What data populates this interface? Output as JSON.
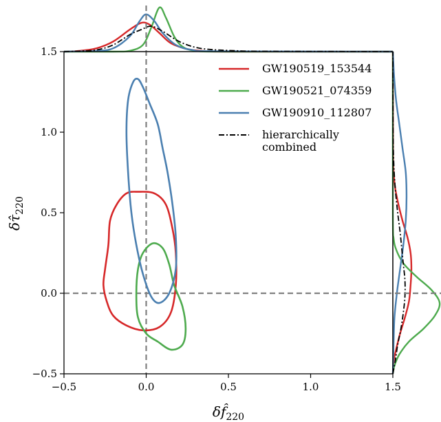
{
  "chart_data": {
    "type": "contour",
    "xlabel": "δf̂",
    "xlabel_sub": "220",
    "ylabel": "δτ̂",
    "ylabel_sub": "220",
    "xlim": [
      -0.5,
      1.5
    ],
    "ylim": [
      -0.5,
      1.5
    ],
    "x_ticks": [
      "−0.5",
      "0.0",
      "0.5",
      "1.0",
      "1.5"
    ],
    "y_ticks": [
      "−0.5",
      "0.0",
      "0.5",
      "1.0",
      "1.5"
    ],
    "x_tick_values": [
      -0.5,
      0.0,
      0.5,
      1.0,
      1.5
    ],
    "y_tick_values": [
      -0.5,
      0.0,
      0.5,
      1.0,
      1.5
    ],
    "reference_lines": {
      "x": 0.0,
      "y": 0.0,
      "color": "#808080",
      "style": "dashed"
    },
    "legend_position": "top-right",
    "series": [
      {
        "name": "GW190519_153544",
        "color": "#d62728",
        "style": "solid",
        "contour": [
          [
            -0.05,
            0.63
          ],
          [
            0.05,
            0.62
          ],
          [
            0.12,
            0.55
          ],
          [
            0.16,
            0.4
          ],
          [
            0.18,
            0.25
          ],
          [
            0.18,
            0.05
          ],
          [
            0.15,
            -0.12
          ],
          [
            0.08,
            -0.21
          ],
          [
            -0.02,
            -0.23
          ],
          [
            -0.12,
            -0.2
          ],
          [
            -0.2,
            -0.14
          ],
          [
            -0.24,
            -0.05
          ],
          [
            -0.26,
            0.05
          ],
          [
            -0.25,
            0.15
          ],
          [
            -0.23,
            0.3
          ],
          [
            -0.22,
            0.45
          ],
          [
            -0.18,
            0.55
          ],
          [
            -0.12,
            0.62
          ]
        ],
        "marginal_x": [
          [
            -0.5,
            0
          ],
          [
            -0.4,
            0.5
          ],
          [
            -0.3,
            2
          ],
          [
            -0.2,
            6
          ],
          [
            -0.1,
            13
          ],
          [
            -0.03,
            17
          ],
          [
            0.02,
            16
          ],
          [
            0.08,
            11
          ],
          [
            0.15,
            5
          ],
          [
            0.25,
            1.5
          ],
          [
            0.35,
            0.4
          ],
          [
            0.5,
            0
          ],
          [
            1.5,
            0
          ]
        ],
        "marginal_y": [
          [
            -0.5,
            0
          ],
          [
            -0.42,
            1
          ],
          [
            -0.35,
            4
          ],
          [
            -0.25,
            9
          ],
          [
            -0.15,
            15
          ],
          [
            -0.05,
            20
          ],
          [
            0.05,
            22
          ],
          [
            0.15,
            23
          ],
          [
            0.25,
            22
          ],
          [
            0.35,
            18
          ],
          [
            0.45,
            12
          ],
          [
            0.55,
            7
          ],
          [
            0.65,
            3
          ],
          [
            0.75,
            1
          ],
          [
            0.9,
            0.3
          ],
          [
            1.5,
            0
          ]
        ]
      },
      {
        "name": "GW190521_074359",
        "color": "#4daa4d",
        "style": "solid",
        "contour": [
          [
            0.04,
            0.31
          ],
          [
            0.1,
            0.28
          ],
          [
            0.14,
            0.18
          ],
          [
            0.17,
            0.05
          ],
          [
            0.22,
            -0.08
          ],
          [
            0.24,
            -0.22
          ],
          [
            0.22,
            -0.32
          ],
          [
            0.15,
            -0.35
          ],
          [
            0.07,
            -0.3
          ],
          [
            0.0,
            -0.25
          ],
          [
            -0.05,
            -0.15
          ],
          [
            -0.06,
            0.0
          ],
          [
            -0.05,
            0.15
          ],
          [
            -0.02,
            0.25
          ]
        ],
        "marginal_x": [
          [
            -0.5,
            0
          ],
          [
            -0.2,
            0
          ],
          [
            -0.1,
            0.5
          ],
          [
            -0.02,
            4
          ],
          [
            0.03,
            14
          ],
          [
            0.08,
            26
          ],
          [
            0.12,
            20
          ],
          [
            0.17,
            9
          ],
          [
            0.22,
            3
          ],
          [
            0.3,
            0.5
          ],
          [
            0.5,
            0
          ],
          [
            1.5,
            0
          ]
        ],
        "marginal_y": [
          [
            -0.5,
            0
          ],
          [
            -0.45,
            2
          ],
          [
            -0.38,
            8
          ],
          [
            -0.3,
            20
          ],
          [
            -0.22,
            38
          ],
          [
            -0.14,
            52
          ],
          [
            -0.06,
            58
          ],
          [
            0.02,
            48
          ],
          [
            0.1,
            30
          ],
          [
            0.18,
            14
          ],
          [
            0.26,
            5
          ],
          [
            0.34,
            1
          ],
          [
            0.5,
            0
          ],
          [
            1.5,
            0
          ]
        ]
      },
      {
        "name": "GW190910_112807",
        "color": "#4a7fb0",
        "style": "solid",
        "contour": [
          [
            -0.05,
            1.33
          ],
          [
            -0.02,
            1.28
          ],
          [
            0.02,
            1.18
          ],
          [
            0.07,
            1.05
          ],
          [
            0.1,
            0.9
          ],
          [
            0.13,
            0.75
          ],
          [
            0.16,
            0.55
          ],
          [
            0.18,
            0.35
          ],
          [
            0.18,
            0.15
          ],
          [
            0.14,
            0.0
          ],
          [
            0.08,
            -0.06
          ],
          [
            0.03,
            -0.02
          ],
          [
            -0.02,
            0.12
          ],
          [
            -0.06,
            0.3
          ],
          [
            -0.09,
            0.5
          ],
          [
            -0.11,
            0.75
          ],
          [
            -0.12,
            1.0
          ],
          [
            -0.11,
            1.2
          ],
          [
            -0.08,
            1.31
          ]
        ],
        "marginal_x": [
          [
            -0.5,
            0
          ],
          [
            -0.3,
            0.5
          ],
          [
            -0.2,
            2
          ],
          [
            -0.1,
            9
          ],
          [
            -0.04,
            18
          ],
          [
            0.0,
            22
          ],
          [
            0.05,
            18
          ],
          [
            0.1,
            11
          ],
          [
            0.18,
            4
          ],
          [
            0.28,
            1
          ],
          [
            0.45,
            0.2
          ],
          [
            1.5,
            0
          ]
        ],
        "marginal_y": [
          [
            -0.5,
            0
          ],
          [
            -0.3,
            1
          ],
          [
            -0.15,
            2
          ],
          [
            0.0,
            5
          ],
          [
            0.15,
            9
          ],
          [
            0.3,
            13
          ],
          [
            0.45,
            16
          ],
          [
            0.6,
            17
          ],
          [
            0.75,
            16
          ],
          [
            0.9,
            12
          ],
          [
            1.05,
            8
          ],
          [
            1.2,
            4
          ],
          [
            1.35,
            1.5
          ],
          [
            1.45,
            0.5
          ],
          [
            1.5,
            0
          ]
        ]
      },
      {
        "name": "hierarchically\ncombined",
        "color": "#000000",
        "style": "dash-dot",
        "marginal_x": [
          [
            -0.5,
            0
          ],
          [
            -0.4,
            0.3
          ],
          [
            -0.3,
            1
          ],
          [
            -0.2,
            4
          ],
          [
            -0.1,
            10
          ],
          [
            -0.03,
            13
          ],
          [
            0.03,
            15
          ],
          [
            0.1,
            12
          ],
          [
            0.2,
            6
          ],
          [
            0.3,
            2.5
          ],
          [
            0.4,
            1.2
          ],
          [
            0.55,
            0.5
          ],
          [
            0.7,
            0.2
          ],
          [
            1.5,
            0
          ]
        ],
        "marginal_y": [
          [
            -0.5,
            0
          ],
          [
            -0.42,
            3
          ],
          [
            -0.32,
            6
          ],
          [
            -0.22,
            10
          ],
          [
            -0.12,
            13
          ],
          [
            -0.02,
            15
          ],
          [
            0.08,
            15
          ],
          [
            0.18,
            13
          ],
          [
            0.28,
            11
          ],
          [
            0.38,
            9
          ],
          [
            0.5,
            6
          ],
          [
            0.65,
            3
          ],
          [
            0.8,
            1.2
          ],
          [
            1.0,
            0.3
          ],
          [
            1.5,
            0
          ]
        ]
      }
    ]
  }
}
